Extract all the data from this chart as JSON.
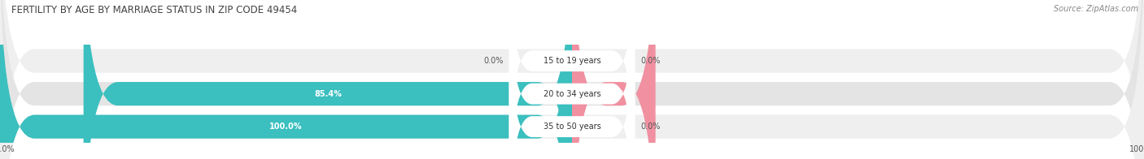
{
  "title": "FERTILITY BY AGE BY MARRIAGE STATUS IN ZIP CODE 49454",
  "source": "Source: ZipAtlas.com",
  "rows": [
    {
      "label": "15 to 19 years",
      "married": 0.0,
      "unmarried": 0.0
    },
    {
      "label": "20 to 34 years",
      "married": 85.4,
      "unmarried": 14.6
    },
    {
      "label": "35 to 50 years",
      "married": 100.0,
      "unmarried": 0.0
    }
  ],
  "married_color": "#3bbfbf",
  "unmarried_color": "#f090a0",
  "row_bg_even": "#efefef",
  "row_bg_odd": "#e4e4e4",
  "title_fontsize": 8.5,
  "source_fontsize": 7,
  "label_fontsize": 7,
  "value_fontsize": 7,
  "legend_fontsize": 8,
  "label_bg": "#ffffff"
}
